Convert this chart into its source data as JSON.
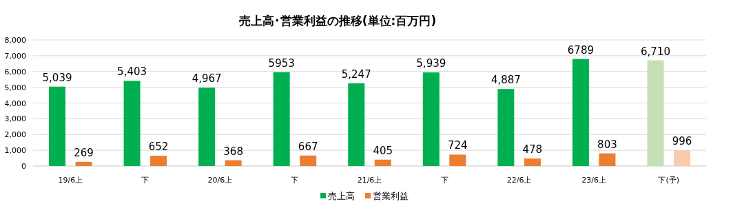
{
  "chart_data": {
    "type": "bar",
    "title": "売上高･営業利益の推移(単位:百万円)",
    "categories": [
      "19/6上",
      "下",
      "20/6上",
      "下",
      "21/6上",
      "下",
      "22/6上",
      "23/6上",
      "下(予)"
    ],
    "series": [
      {
        "name": "売上高",
        "color": "#00b050",
        "colors": [
          "#00b050",
          "#00b050",
          "#00b050",
          "#00b050",
          "#00b050",
          "#00b050",
          "#00b050",
          "#00b050",
          "#c5e0b4"
        ],
        "values": [
          5039,
          5403,
          4967,
          5953,
          5247,
          5939,
          4887,
          6789,
          6710
        ],
        "value_labels": [
          "5,039",
          "5,403",
          "4,967",
          "5953",
          "5,247",
          "5,939",
          "4,887",
          "6789",
          "6,710"
        ]
      },
      {
        "name": "営業利益",
        "color": "#ed7d31",
        "colors": [
          "#ed7d31",
          "#ed7d31",
          "#ed7d31",
          "#ed7d31",
          "#ed7d31",
          "#ed7d31",
          "#ed7d31",
          "#ed7d31",
          "#f8cbad"
        ],
        "values": [
          269,
          652,
          368,
          667,
          405,
          724,
          478,
          803,
          996
        ],
        "value_labels": [
          "269",
          "652",
          "368",
          "667",
          "405",
          "724",
          "478",
          "803",
          "996"
        ]
      }
    ],
    "ylim": [
      0,
      8000
    ],
    "yticks": [
      {
        "value": 0,
        "label": "0"
      },
      {
        "value": 1000,
        "label": "1,000"
      },
      {
        "value": 2000,
        "label": "2,000"
      },
      {
        "value": 3000,
        "label": "3,000"
      },
      {
        "value": 4000,
        "label": "4,000"
      },
      {
        "value": 5000,
        "label": "5,000"
      },
      {
        "value": 6000,
        "label": "6,000"
      },
      {
        "value": 7000,
        "label": "7,000"
      },
      {
        "value": 8000,
        "label": "8,000"
      }
    ],
    "grid": "y",
    "legend": "bottom"
  }
}
